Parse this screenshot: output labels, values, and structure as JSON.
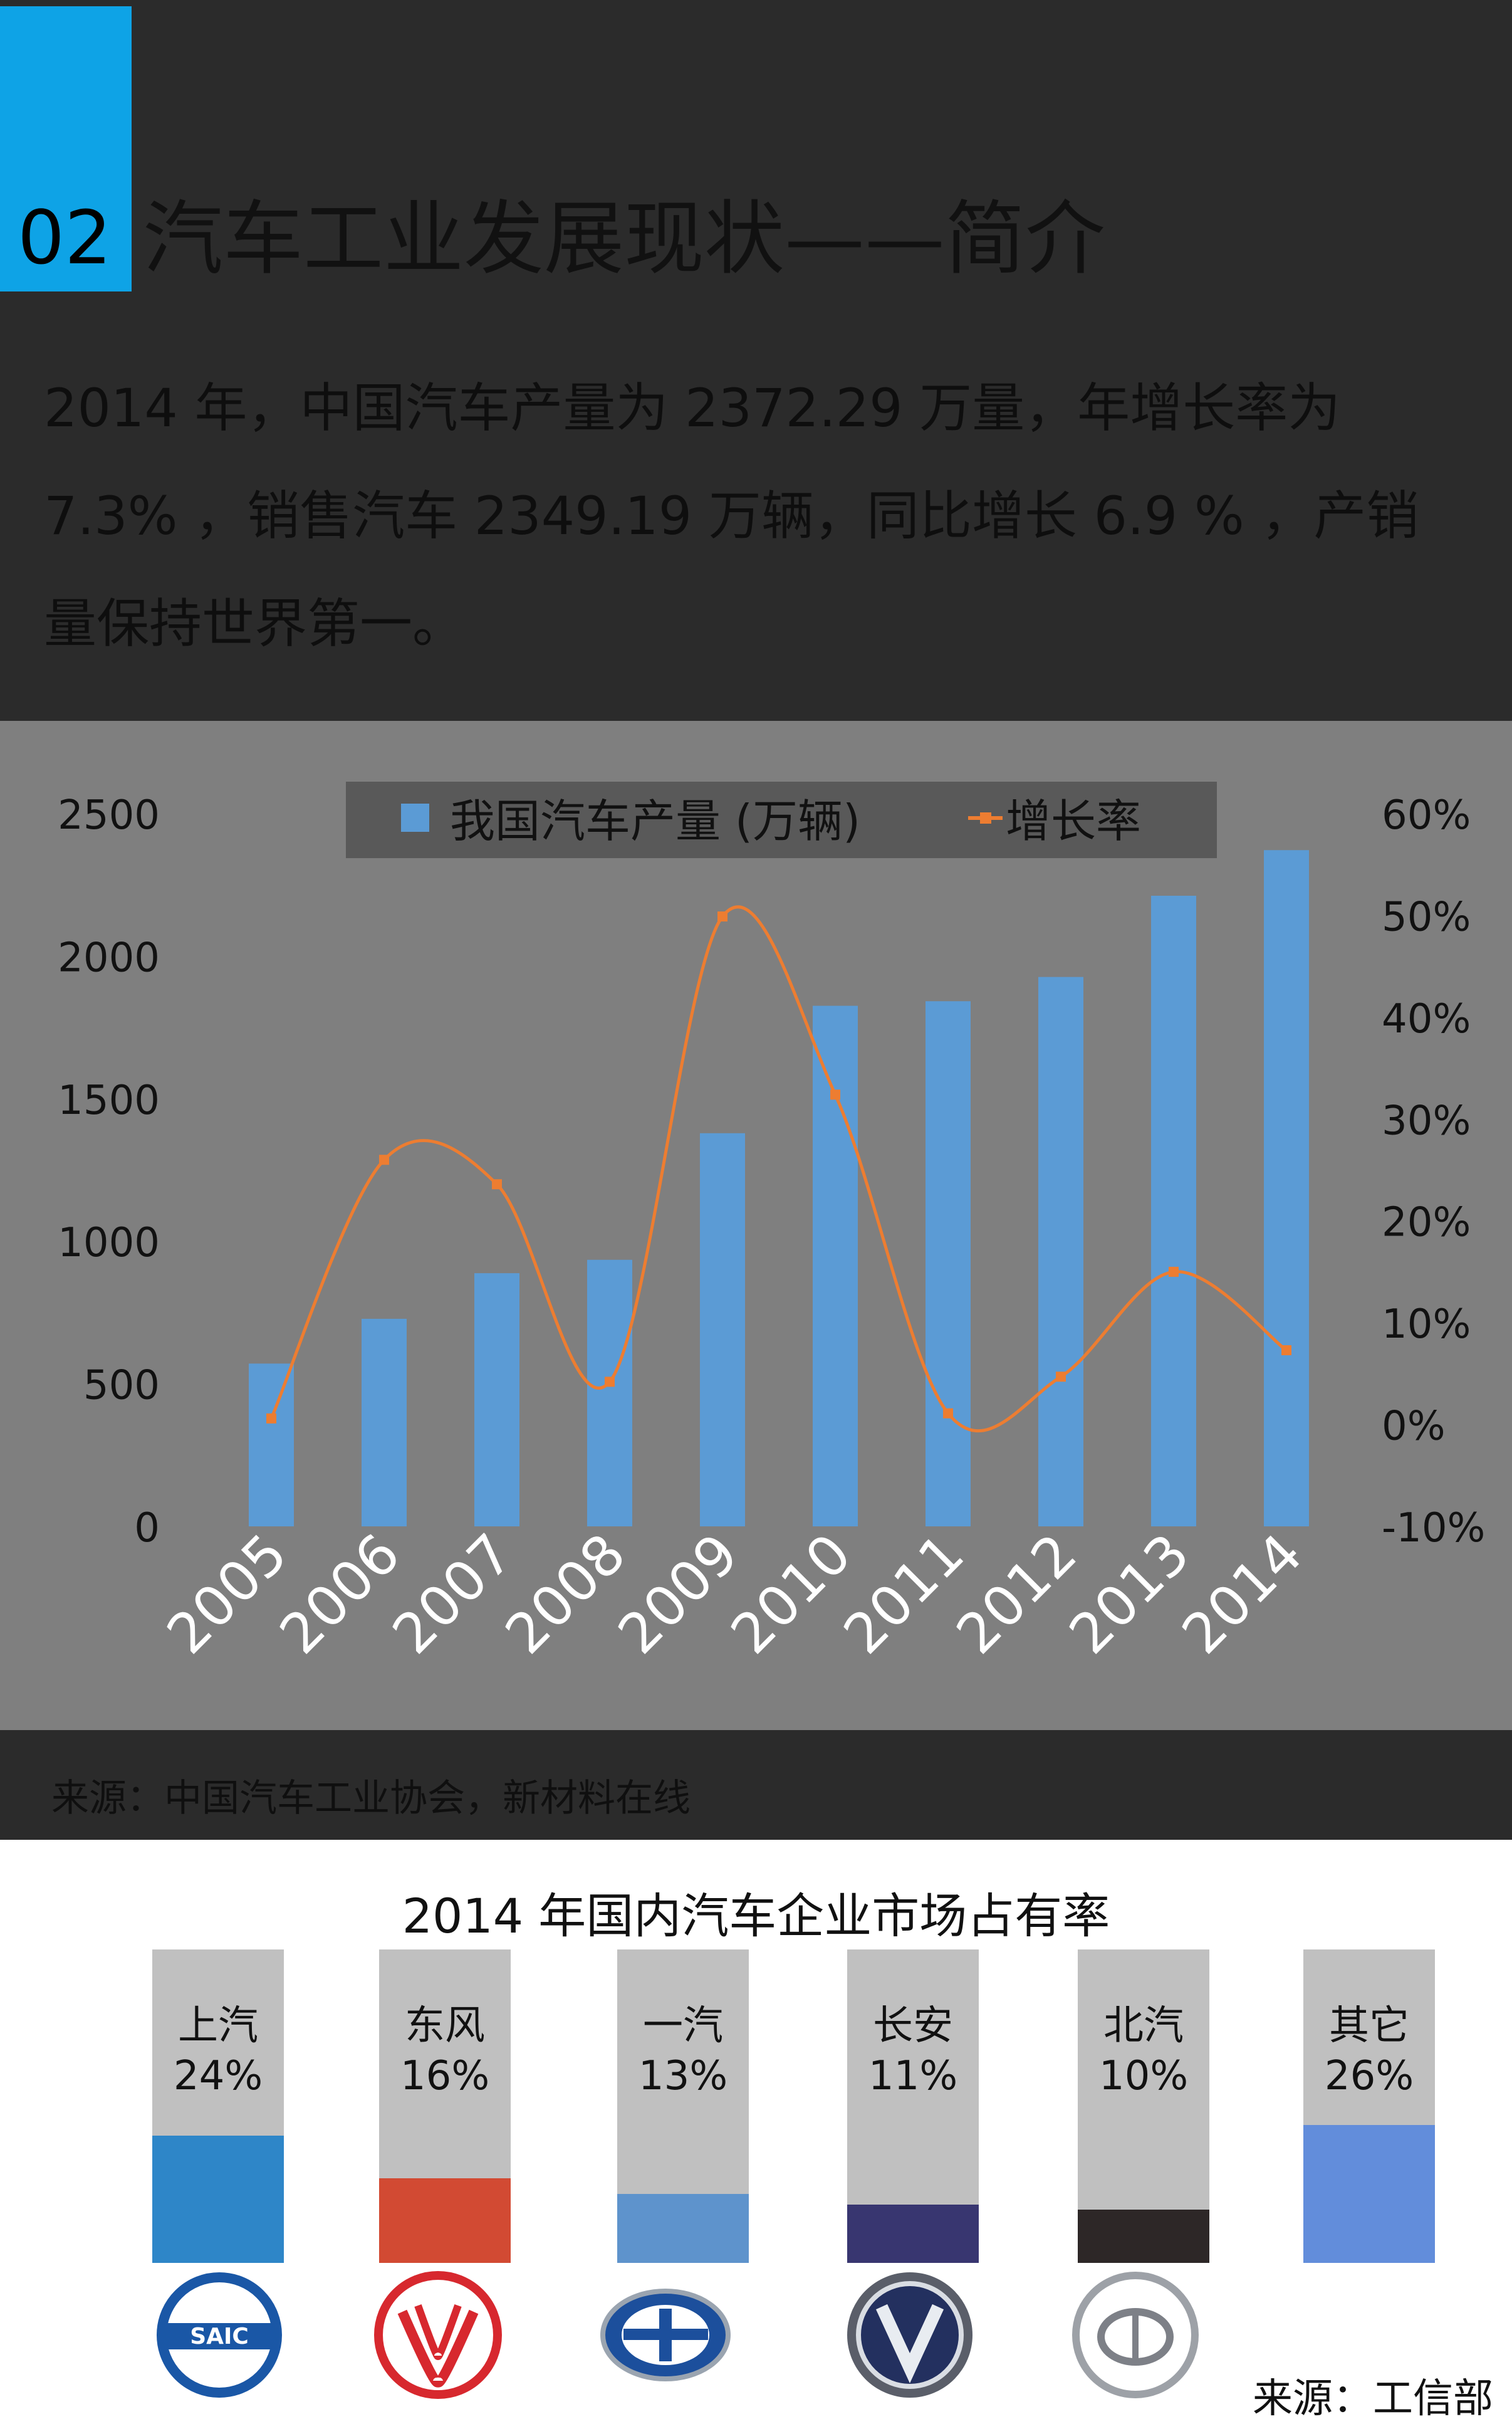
{
  "header": {
    "number": "02",
    "title": "汽车工业发展现状——简介",
    "intro_lines": [
      "2014 年，中国汽车产量为  2372.29 万量，年增长率为",
      "7.3%  ，销售汽车 2349.19 万辆，同比增长  6.9 %  ，产销",
      "量保持世界第一。"
    ]
  },
  "chart_data": {
    "type": "bar+line",
    "categories": [
      "2005",
      "2006",
      "2007",
      "2008",
      "2009",
      "2010",
      "2011",
      "2012",
      "2013",
      "2014"
    ],
    "series": [
      {
        "name": "我国汽车产量 (万辆)",
        "type": "bar",
        "axis": "left",
        "color": "#5b9bd5",
        "values": [
          571,
          728,
          888,
          935,
          1379,
          1826,
          1842,
          1927,
          2212,
          2372
        ]
      },
      {
        "name": "增长率",
        "type": "line",
        "axis": "right",
        "color": "#ed7d31",
        "values": [
          0.6,
          26.0,
          23.6,
          4.2,
          49.9,
          32.4,
          1.1,
          4.7,
          15.0,
          7.3
        ]
      }
    ],
    "y_left": {
      "min": 0,
      "max": 2500,
      "ticks": [
        "0",
        "500",
        "1000",
        "1500",
        "2000",
        "2500"
      ]
    },
    "y_right": {
      "min": -10,
      "max": 60,
      "ticks": [
        "-10%",
        "0%",
        "10%",
        "20%",
        "30%",
        "40%",
        "50%",
        "60%"
      ]
    },
    "legend": {
      "position": "top-center",
      "bar_label": "我国汽车产量 (万辆)",
      "line_label": "增长率"
    },
    "grid": false
  },
  "source_bar": {
    "text": "来源：中国汽车工业协会，新材料在线"
  },
  "market_share": {
    "title": "2014 年国内汽车企业市场占有率",
    "source": "来源：工信部",
    "companies": [
      {
        "name": "上汽",
        "percent": "24%",
        "value": 24,
        "color": "#2e86c8",
        "logo": "saic-logo"
      },
      {
        "name": "东风",
        "percent": "16%",
        "value": 16,
        "color": "#d24a33",
        "logo": "dongfeng-logo"
      },
      {
        "name": "一汽",
        "percent": "13%",
        "value": 13,
        "color": "#5e93cc",
        "logo": "faw-logo"
      },
      {
        "name": "长安",
        "percent": "11%",
        "value": 11,
        "color": "#383670",
        "logo": "changan-logo"
      },
      {
        "name": "北汽",
        "percent": "10%",
        "value": 10,
        "color": "#2d2727",
        "logo": "baic-logo"
      },
      {
        "name": "其它",
        "percent": "26%",
        "value": 26,
        "color": "#628ddb",
        "logo": ""
      }
    ]
  }
}
